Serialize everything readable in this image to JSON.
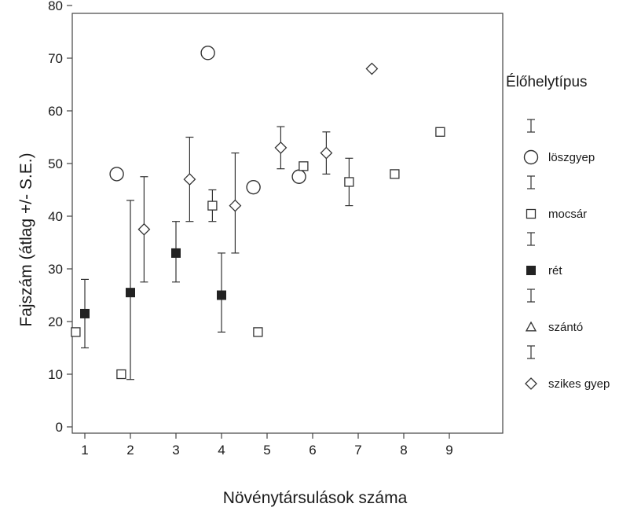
{
  "chart_data": {
    "type": "scatter",
    "title": "",
    "xlabel": "Növénytársulások száma",
    "ylabel": "Fajszám (átlag +/- S.E.)",
    "xlim": [
      0,
      10
    ],
    "ylim": [
      0,
      80
    ],
    "xticks": [
      1,
      2,
      3,
      4,
      5,
      6,
      7,
      8,
      9
    ],
    "yticks": [
      0,
      10,
      20,
      30,
      40,
      50,
      60,
      70,
      80
    ],
    "grid": false,
    "legend_title": "Élőhelytípus",
    "legend_position": "right",
    "series": [
      {
        "name": "löszgyep",
        "marker": "circle",
        "points": [
          {
            "x": 1.7,
            "y": 48
          },
          {
            "x": 3.7,
            "y": 71
          },
          {
            "x": 4.7,
            "y": 45.5
          },
          {
            "x": 5.7,
            "y": 47.5
          }
        ]
      },
      {
        "name": "mocsár",
        "marker": "square-open",
        "points": [
          {
            "x": 0.8,
            "y": 18
          },
          {
            "x": 1.8,
            "y": 10
          },
          {
            "x": 3.8,
            "y": 42,
            "lo": 39,
            "hi": 45
          },
          {
            "x": 4.8,
            "y": 18
          },
          {
            "x": 5.8,
            "y": 49.5
          },
          {
            "x": 6.8,
            "y": 46.5,
            "lo": 42,
            "hi": 51
          },
          {
            "x": 7.8,
            "y": 48
          },
          {
            "x": 8.8,
            "y": 56
          }
        ]
      },
      {
        "name": "rét",
        "marker": "square-filled",
        "points": [
          {
            "x": 1.0,
            "y": 21.5,
            "lo": 15,
            "hi": 28
          },
          {
            "x": 2.0,
            "y": 25.5,
            "lo": 9,
            "hi": 43
          },
          {
            "x": 3.0,
            "y": 33,
            "lo": 27.5,
            "hi": 39
          },
          {
            "x": 4.0,
            "y": 25,
            "lo": 18,
            "hi": 33
          }
        ]
      },
      {
        "name": "szántó",
        "marker": "triangle",
        "points": []
      },
      {
        "name": "szikes gyep",
        "marker": "diamond",
        "points": [
          {
            "x": 2.3,
            "y": 37.5,
            "lo": 27.5,
            "hi": 47.5
          },
          {
            "x": 3.3,
            "y": 47,
            "lo": 39,
            "hi": 55
          },
          {
            "x": 4.3,
            "y": 42,
            "lo": 33,
            "hi": 52
          },
          {
            "x": 5.3,
            "y": 53,
            "lo": 49,
            "hi": 57
          },
          {
            "x": 6.3,
            "y": 52,
            "lo": 48,
            "hi": 56
          },
          {
            "x": 7.3,
            "y": 68
          }
        ]
      }
    ]
  }
}
